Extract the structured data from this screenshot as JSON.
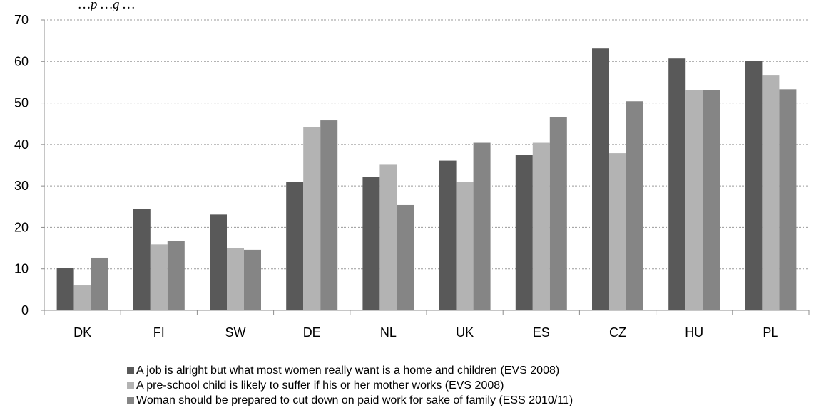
{
  "chart_data": {
    "type": "bar",
    "title": "…p        …g         …",
    "categories": [
      "DK",
      "FI",
      "SW",
      "DE",
      "NL",
      "UK",
      "ES",
      "CZ",
      "HU",
      "PL"
    ],
    "series": [
      {
        "name": "A job is alright but what most women really want is a home and children (EVS 2008)",
        "color": "#595959",
        "values": [
          10.2,
          24.4,
          23.1,
          30.9,
          32.1,
          36.1,
          37.4,
          63.1,
          60.7,
          60.2
        ]
      },
      {
        "name": "A pre-school child is likely to suffer if his or her mother works (EVS 2008)",
        "color": "#b3b3b3",
        "values": [
          6.0,
          15.9,
          15.0,
          44.2,
          35.1,
          30.9,
          40.4,
          37.9,
          53.1,
          56.6
        ]
      },
      {
        "name": "Woman should be prepared to cut down on paid work for sake of family (ESS 2010/11)",
        "color": "#858585",
        "values": [
          12.7,
          16.8,
          14.6,
          45.8,
          25.4,
          40.4,
          46.6,
          50.4,
          53.1,
          53.3
        ]
      }
    ],
    "yticks": [
      0,
      10,
      20,
      30,
      40,
      50,
      60,
      70
    ],
    "ylim": [
      0,
      70
    ],
    "grid": true,
    "legend_position": "bottom"
  }
}
